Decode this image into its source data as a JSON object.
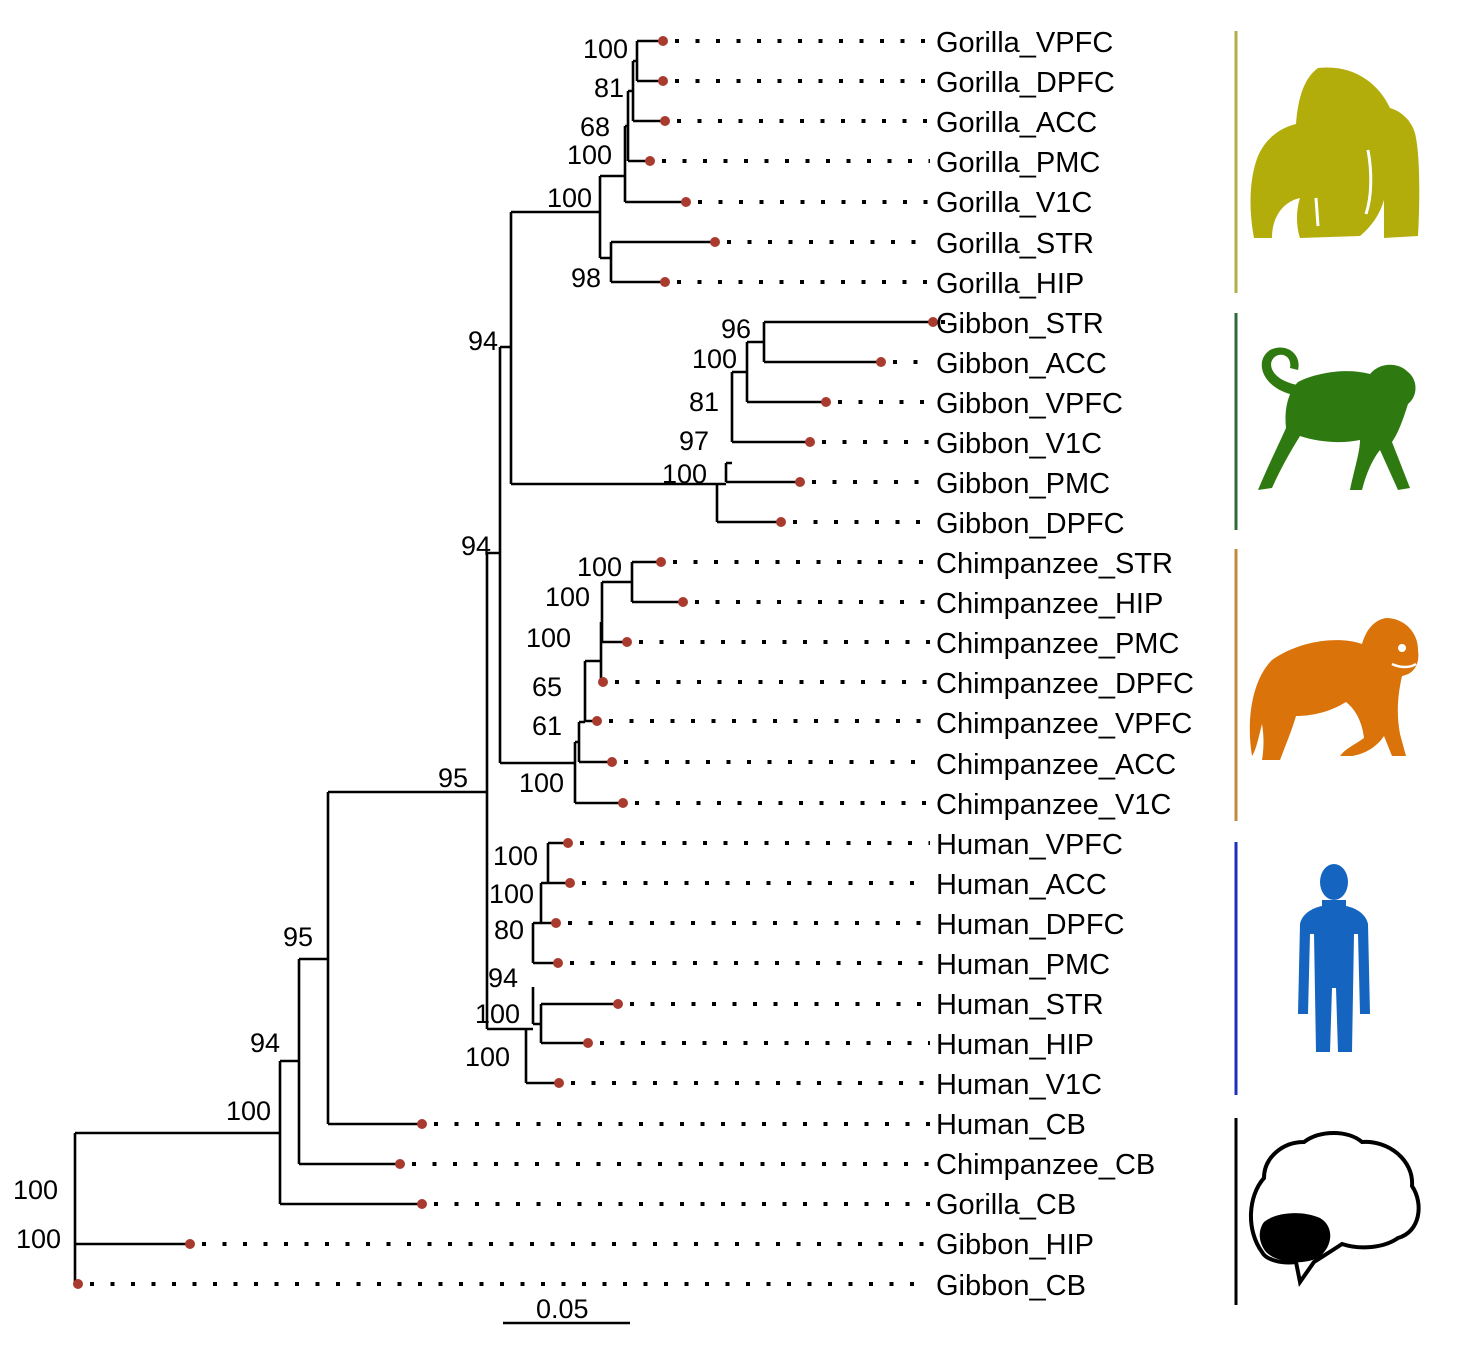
{
  "taxa": [
    "Gorilla_VPFC",
    "Gorilla_DPFC",
    "Gorilla_ACC",
    "Gorilla_PMC",
    "Gorilla_V1C",
    "Gorilla_STR",
    "Gorilla_HIP",
    "Gibbon_STR",
    "Gibbon_ACC",
    "Gibbon_VPFC",
    "Gibbon_V1C",
    "Gibbon_PMC",
    "Gibbon_DPFC",
    "Chimpanzee_STR",
    "Chimpanzee_HIP",
    "Chimpanzee_PMC",
    "Chimpanzee_DPFC",
    "Chimpanzee_VPFC",
    "Chimpanzee_ACC",
    "Chimpanzee_V1C",
    "Human_VPFC",
    "Human_ACC",
    "Human_DPFC",
    "Human_PMC",
    "Human_STR",
    "Human_HIP",
    "Human_V1C",
    "Human_CB",
    "Chimpanzee_CB",
    "Gorilla_CB",
    "Gibbon_HIP",
    "Gibbon_CB"
  ],
  "bootstrap": [
    "100",
    "81",
    "68",
    "100",
    "100",
    "98",
    "96",
    "100",
    "81",
    "97",
    "100",
    "100",
    "100",
    "100",
    "65",
    "61",
    "100",
    "100",
    "100",
    "80",
    "94",
    "100",
    "100",
    "94",
    "94",
    "95",
    "95",
    "94",
    "100",
    "100",
    "100"
  ],
  "scale_bar": {
    "label": "0.05"
  },
  "groups": [
    {
      "name": "gorilla",
      "color": "#b3ad0c",
      "icon": "gorilla-icon"
    },
    {
      "name": "gibbon",
      "color": "#2f7a10",
      "icon": "gibbon-icon"
    },
    {
      "name": "chimpanzee",
      "color": "#d9730a",
      "icon": "chimpanzee-icon"
    },
    {
      "name": "human",
      "color": "#1565c0",
      "icon": "human-icon"
    },
    {
      "name": "cerebellum",
      "color": "#000000",
      "icon": "brain-cerebellum-icon"
    }
  ],
  "colors": {
    "tip_dot": "#a93a2e",
    "gorilla_bar": "#b3ad4a",
    "gibbon_bar": "#2f6a38",
    "chimpanzee_bar": "#c08a40",
    "human_bar": "#1f2fc0",
    "cb_bar": "#000000"
  }
}
